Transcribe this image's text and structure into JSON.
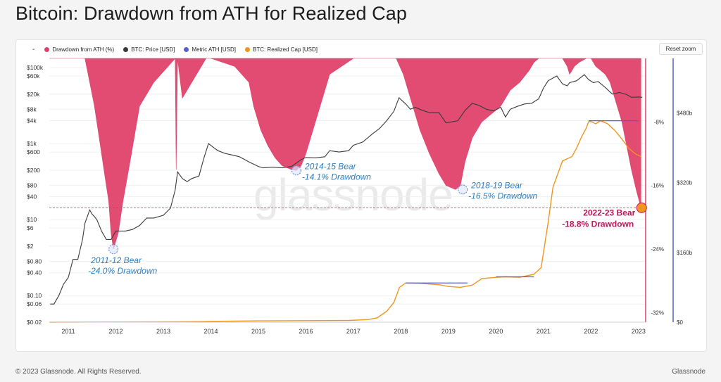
{
  "page": {
    "title": "Bitcoin: Drawdown from ATH for Realized Cap",
    "reset_zoom_label": "Reset zoom",
    "footer_copyright": "© 2023 Glassnode. All Rights Reserved.",
    "footer_brand": "Glassnode",
    "watermark": "glassnode",
    "legend_dash": "-"
  },
  "colors": {
    "drawdown": "#e0416a",
    "price": "#3a3a3a",
    "metric_ath": "#5560c8",
    "realized_cap": "#f0961e",
    "annotation_blue": "#2f7fc0",
    "annotation_current": "#c0155a",
    "threshold_line": "#c83a4a"
  },
  "chart_data": {
    "type": "line",
    "title": "Bitcoin: Drawdown from ATH for Realized Cap",
    "legend": [
      {
        "name": "Drawdown from ATH (%)",
        "color": "#e0416a"
      },
      {
        "name": "BTC: Price [USD]",
        "color": "#3a3a3a"
      },
      {
        "name": "Metric ATH [USD]",
        "color": "#5560c8"
      },
      {
        "name": "BTC: Realized Cap [USD]",
        "color": "#f0961e"
      }
    ],
    "x_ticks": [
      "2011",
      "2012",
      "2013",
      "2014",
      "2015",
      "2016",
      "2017",
      "2018",
      "2019",
      "2020",
      "2021",
      "2022",
      "2023"
    ],
    "x_range": [
      2010.6,
      2023.15
    ],
    "price_axis": {
      "scale": "log",
      "ticks": [
        "$0.02",
        "$0.06",
        "$0.10",
        "$0.40",
        "$0.80",
        "$2",
        "$6",
        "$10",
        "$40",
        "$80",
        "$200",
        "$600",
        "$1k",
        "$4k",
        "$8k",
        "$20k",
        "$60k",
        "$100k"
      ],
      "tick_values": [
        0.02,
        0.06,
        0.1,
        0.4,
        0.8,
        2,
        6,
        10,
        40,
        80,
        200,
        600,
        1000,
        4000,
        8000,
        20000,
        60000,
        100000
      ],
      "range": [
        0.02,
        100000
      ]
    },
    "drawdown_axis": {
      "ticks": [
        "-8%",
        "-16%",
        "-24%",
        "-32%"
      ],
      "tick_values": [
        -8,
        -16,
        -24,
        -32
      ],
      "range": [
        -33.2,
        0
      ]
    },
    "realized_cap_axis": {
      "ticks": [
        "$480b",
        "$320b",
        "$160b",
        "$0"
      ],
      "tick_values": [
        480,
        320,
        160,
        0
      ],
      "range": [
        0,
        605
      ]
    },
    "series": [
      {
        "name": "BTC: Price [USD]",
        "axis": "price",
        "x": [
          2010.62,
          2010.7,
          2010.8,
          2010.9,
          2011.0,
          2011.1,
          2011.2,
          2011.3,
          2011.35,
          2011.45,
          2011.5,
          2011.55,
          2011.6,
          2011.7,
          2011.8,
          2011.9,
          2012.0,
          2012.1,
          2012.2,
          2012.35,
          2012.5,
          2012.65,
          2012.8,
          2013.0,
          2013.15,
          2013.25,
          2013.3,
          2013.4,
          2013.5,
          2013.6,
          2013.75,
          2013.85,
          2013.95,
          2014.05,
          2014.15,
          2014.3,
          2014.45,
          2014.6,
          2014.8,
          2015.0,
          2015.1,
          2015.3,
          2015.5,
          2015.7,
          2015.9,
          2016.0,
          2016.2,
          2016.4,
          2016.5,
          2016.7,
          2016.9,
          2017.0,
          2017.2,
          2017.4,
          2017.55,
          2017.7,
          2017.85,
          2017.96,
          2018.1,
          2018.2,
          2018.3,
          2018.45,
          2018.6,
          2018.8,
          2018.95,
          2019.05,
          2019.2,
          2019.35,
          2019.5,
          2019.65,
          2019.8,
          2019.95,
          2020.1,
          2020.2,
          2020.3,
          2020.45,
          2020.6,
          2020.75,
          2020.9,
          2021.0,
          2021.1,
          2021.28,
          2021.4,
          2021.5,
          2021.55,
          2021.7,
          2021.86,
          2021.95,
          2022.05,
          2022.15,
          2022.3,
          2022.45,
          2022.6,
          2022.75,
          2022.85,
          2023.0,
          2023.08
        ],
        "values": [
          0.06,
          0.06,
          0.1,
          0.2,
          0.3,
          0.9,
          0.9,
          3,
          8,
          18,
          14,
          12,
          10,
          5,
          3,
          3,
          5,
          5,
          5,
          5.5,
          7,
          11,
          11,
          13,
          20,
          60,
          180,
          120,
          100,
          120,
          140,
          400,
          1000,
          800,
          650,
          550,
          500,
          450,
          330,
          250,
          230,
          240,
          230,
          250,
          380,
          430,
          420,
          450,
          650,
          600,
          650,
          900,
          1100,
          1800,
          2500,
          4000,
          7000,
          16000,
          11000,
          8000,
          9000,
          7500,
          6500,
          6500,
          3500,
          3700,
          4000,
          7500,
          11500,
          10000,
          8000,
          7200,
          9000,
          5000,
          8000,
          9500,
          11000,
          11500,
          15000,
          29000,
          45000,
          60000,
          37000,
          33000,
          40000,
          45000,
          65000,
          48000,
          40000,
          43000,
          30000,
          20000,
          22000,
          19500,
          16500,
          16800,
          16500
        ]
      },
      {
        "name": "BTC: Realized Cap [USD]",
        "axis": "realized_cap",
        "x": [
          2010.6,
          2012.0,
          2013.0,
          2013.8,
          2014.0,
          2015.0,
          2016.0,
          2016.9,
          2017.3,
          2017.5,
          2017.7,
          2017.85,
          2017.97,
          2018.1,
          2018.4,
          2018.8,
          2019.0,
          2019.25,
          2019.5,
          2019.7,
          2020.0,
          2020.2,
          2020.5,
          2020.8,
          2020.95,
          2021.0,
          2021.1,
          2021.2,
          2021.4,
          2021.5,
          2021.6,
          2021.7,
          2021.8,
          2021.9,
          2021.95,
          2022.0,
          2022.1,
          2022.2,
          2022.35,
          2022.5,
          2022.65,
          2022.8,
          2022.95,
          2023.05
        ],
        "values": [
          0,
          0.5,
          1,
          1.5,
          2,
          3,
          3.5,
          4,
          6,
          10,
          25,
          45,
          80,
          90,
          89,
          86,
          82,
          80,
          85,
          100,
          103,
          104,
          103,
          110,
          125,
          160,
          230,
          310,
          370,
          375,
          380,
          400,
          425,
          445,
          460,
          460,
          455,
          462,
          455,
          440,
          420,
          398,
          385,
          380
        ]
      },
      {
        "name": "Metric ATH [USD]",
        "axis": "realized_cap",
        "segments": [
          {
            "x": [
              2018.1,
              2019.4
            ],
            "value": 90
          },
          {
            "x": [
              2020.0,
              2020.8
            ],
            "value": 104
          },
          {
            "x": [
              2021.95,
              2023.0
            ],
            "value": 462
          }
        ]
      },
      {
        "name": "Drawdown from ATH (%)",
        "axis": "drawdown",
        "x": [
          2010.6,
          2011.0,
          2011.35,
          2011.45,
          2011.55,
          2011.65,
          2011.75,
          2011.85,
          2011.9,
          2011.95,
          2012.05,
          2012.15,
          2012.3,
          2012.5,
          2012.8,
          2013.25,
          2013.27,
          2013.3,
          2013.4,
          2013.9,
          2014.0,
          2014.5,
          2014.8,
          2014.9,
          2015.05,
          2015.2,
          2015.35,
          2015.5,
          2015.7,
          2015.8,
          2015.9,
          2016.0,
          2016.5,
          2017.0,
          2017.9,
          2018.05,
          2018.2,
          2018.4,
          2018.6,
          2018.8,
          2018.95,
          2019.15,
          2019.25,
          2019.35,
          2019.5,
          2019.7,
          2019.9,
          2020.1,
          2020.3,
          2020.5,
          2020.7,
          2020.8,
          2020.9,
          2021.0,
          2021.4,
          2021.5,
          2021.55,
          2021.65,
          2021.75,
          2021.9,
          2022.0,
          2022.1,
          2022.2,
          2022.3,
          2022.4,
          2022.5,
          2022.65,
          2022.75,
          2022.85,
          2022.95,
          2023.05
        ],
        "values": [
          0,
          0,
          0,
          -3,
          -6,
          -10,
          -14,
          -18,
          -22,
          -24,
          -22,
          -18,
          -13,
          -6,
          -3,
          0,
          -14,
          0,
          -5,
          0,
          0,
          -1,
          -3,
          -6,
          -9,
          -11,
          -12.5,
          -13.5,
          -14,
          -14.1,
          -13.5,
          -12,
          -2,
          0,
          0,
          -2,
          -5,
          -9,
          -12,
          -14.5,
          -16,
          -16.5,
          -16,
          -13,
          -10,
          -8,
          -7,
          -6,
          -4,
          -3,
          -1.5,
          -0.5,
          0,
          0,
          0,
          -1,
          -2,
          -1,
          -0.5,
          0,
          0,
          -1,
          -1.5,
          -2,
          -3,
          -5,
          -8,
          -11,
          -14,
          -16.5,
          -18.8
        ]
      }
    ],
    "annotations": [
      {
        "x": 2011.95,
        "y_drawdown": -24.0,
        "line1": "2011-12 Bear",
        "line2": "-24.0% Drawdown"
      },
      {
        "x": 2015.8,
        "y_drawdown": -14.1,
        "line1": "2014-15 Bear",
        "line2": "-14.1% Drawdown"
      },
      {
        "x": 2019.3,
        "y_drawdown": -16.5,
        "line1": "2018-19 Bear",
        "line2": "-16.5% Drawdown"
      },
      {
        "x": 2023.05,
        "y_drawdown": -18.8,
        "line1": "2022-23 Bear",
        "line2": "-18.8% Drawdown",
        "current": true
      }
    ],
    "threshold": {
      "value_drawdown": -18.8,
      "style": "dashed"
    },
    "grid": "horizontal",
    "legend_position": "top-left"
  }
}
